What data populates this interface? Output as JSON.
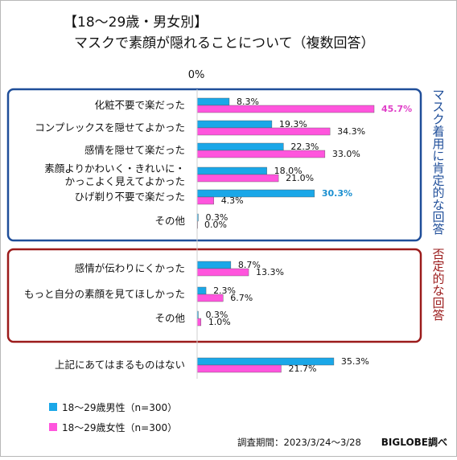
{
  "chart_data": {
    "type": "bar",
    "title_line1": "【18〜29歳・男女別】",
    "title_line2": "マスクで素顔が隠れることについて（複数回答）",
    "zero_label": "0%",
    "unit": "%",
    "categories": [
      "化粧不要で楽だった",
      "コンプレックスを隠せてよかった",
      "感情を隠せて楽だった",
      "素顔よりかわいく・きれいに・かっこよく見えてよかった",
      "ひげ剃り不要で楽だった",
      "その他",
      "感情が伝わりにくかった",
      "もっと自分の素顔を見てほしかった",
      "その他",
      "上記にあてはまるものはない"
    ],
    "series": [
      {
        "name": "18〜29歳男性（n=300）",
        "color": "#1aa7e8",
        "values": [
          8.3,
          19.3,
          22.3,
          18.0,
          30.3,
          0.3,
          8.7,
          2.3,
          0.3,
          35.3
        ]
      },
      {
        "name": "18〜29歳女性（n=300）",
        "color": "#ff55dd",
        "values": [
          45.7,
          34.3,
          33.0,
          21.0,
          4.3,
          0.0,
          13.3,
          6.7,
          1.0,
          21.7
        ]
      }
    ],
    "highlights": [
      {
        "series": 1,
        "index": 0,
        "color": "#e040c8"
      },
      {
        "series": 0,
        "index": 4,
        "color": "#1a8fd0"
      }
    ],
    "groups": [
      {
        "label": "マスク着用に肯定的な回答",
        "color": "#1f4e99"
      },
      {
        "label": "否定的な回答",
        "color": "#9b1b1b"
      }
    ]
  },
  "footer": {
    "period": "調査期間：2023/3/24〜3/28",
    "source": "BIGLOBE調べ"
  }
}
